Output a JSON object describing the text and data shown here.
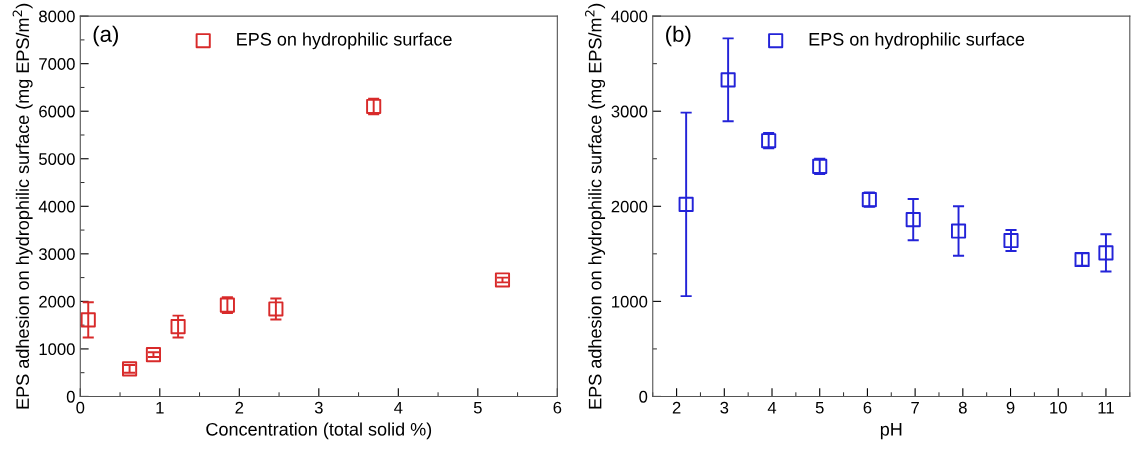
{
  "chart_data": [
    {
      "type": "scatter",
      "xlabel": "Concentration (total solid %)",
      "ylabel": "EPS adhesion on hydrophilic surface (mg EPS/m$^{2}$)",
      "annotations": [
        "(a)"
      ],
      "marker": "square",
      "legend": "top",
      "grid": false,
      "xlim": [
        0,
        6
      ],
      "xticks": [
        0,
        1,
        2,
        3,
        4,
        5,
        6
      ],
      "ylim": [
        0,
        8000
      ],
      "yticks": [
        0,
        1000,
        2000,
        3000,
        4000,
        5000,
        6000,
        7000,
        8000
      ],
      "series": [
        {
          "name": "EPS on hydrophilic surface",
          "color": "#d82a2a",
          "x": [
            0.1,
            0.62,
            0.92,
            1.23,
            1.85,
            2.46,
            3.69,
            5.31
          ],
          "values": [
            1610,
            580,
            880,
            1470,
            1920,
            1840,
            6100,
            2450
          ],
          "errors": [
            370,
            80,
            50,
            230,
            165,
            220,
            165,
            50
          ]
        }
      ]
    },
    {
      "type": "scatter",
      "xlabel": "pH",
      "ylabel": "EPS adhesion on hydrophilic surface (mg EPS/m$^{2}$)",
      "annotations": [
        "(b)"
      ],
      "marker": "square",
      "legend": "top",
      "grid": false,
      "xlim": [
        1.5,
        11.5
      ],
      "xticks": [
        2,
        3,
        4,
        5,
        6,
        7,
        8,
        9,
        10,
        11
      ],
      "ylim": [
        0,
        4000
      ],
      "yticks": [
        0,
        1000,
        2000,
        3000,
        4000
      ],
      "series": [
        {
          "name": "EPS on hydrophilic surface",
          "color": "#2323d8",
          "x": [
            2.2,
            3.08,
            3.93,
            5.0,
            6.04,
            6.96,
            7.91,
            9.01,
            10.5,
            11.0
          ],
          "values": [
            2020,
            3330,
            2690,
            2420,
            2070,
            1860,
            1740,
            1640,
            1440,
            1510
          ],
          "errors": [
            965,
            436,
            80,
            80,
            75,
            217,
            260,
            110,
            65,
            195
          ]
        }
      ]
    }
  ]
}
